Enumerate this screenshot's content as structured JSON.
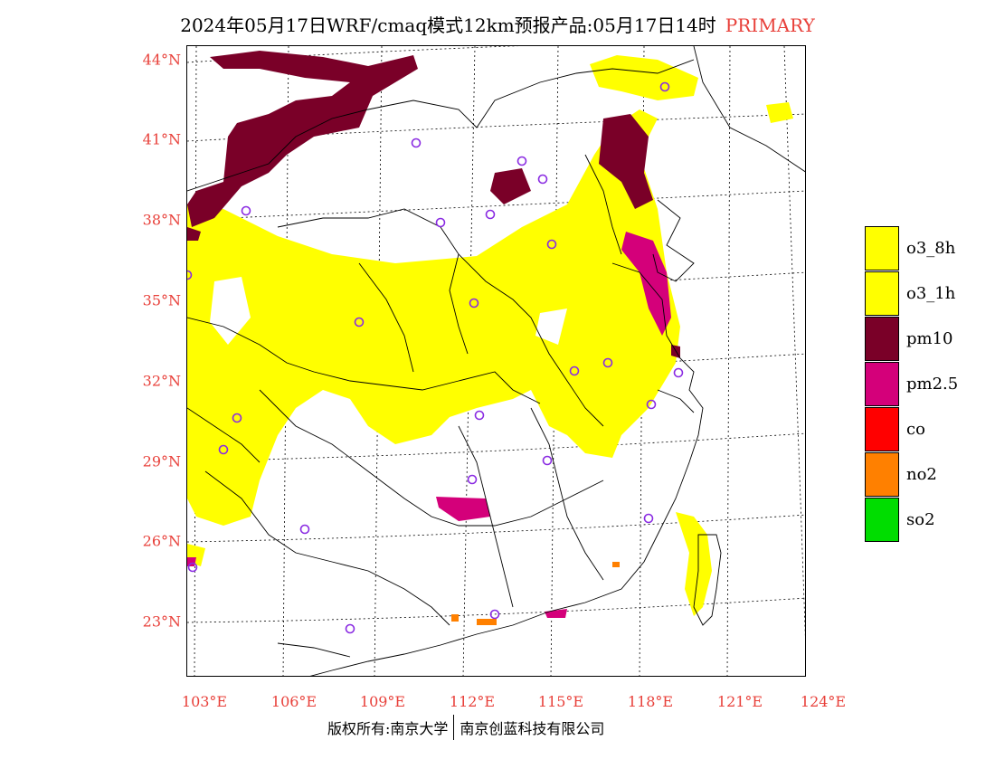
{
  "title": {
    "main": "2024年05月17日WRF/cmaq模式12km预报产品:05月17日14时",
    "tag": "PRIMARY"
  },
  "lat_labels": [
    "44°N",
    "41°N",
    "38°N",
    "35°N",
    "32°N",
    "29°N",
    "26°N",
    "23°N"
  ],
  "lon_labels": [
    "103°E",
    "106°E",
    "109°E",
    "112°E",
    "115°E",
    "118°E",
    "121°E",
    "124°E"
  ],
  "legend": [
    {
      "label": "o3_8h",
      "color": "#ffff00"
    },
    {
      "label": "o3_1h",
      "color": "#ffff00"
    },
    {
      "label": "pm10",
      "color": "#7a0028"
    },
    {
      "label": "pm2.5",
      "color": "#d4007a"
    },
    {
      "label": "co",
      "color": "#ff0000"
    },
    {
      "label": "no2",
      "color": "#ff8000"
    },
    {
      "label": "so2",
      "color": "#00dd00"
    }
  ],
  "footer": {
    "left": "版权所有:南京大学",
    "right": "南京创蓝科技有限公司"
  },
  "colors": {
    "axis_label": "#e8403a",
    "station_marker": "#8a2be2",
    "o3": "#ffff00",
    "pm10": "#7a0028",
    "pm25": "#d4007a",
    "no2": "#ff8000"
  }
}
